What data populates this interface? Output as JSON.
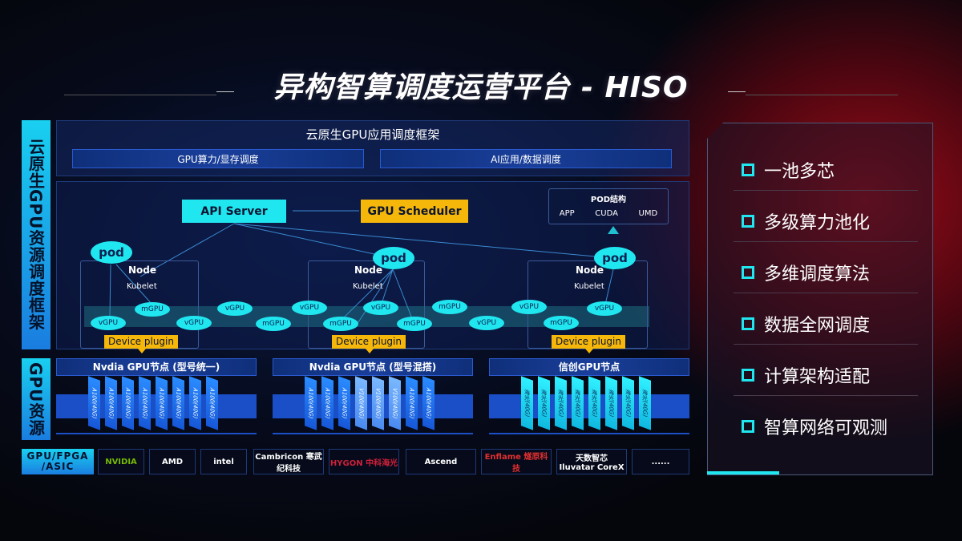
{
  "title": "异构智算调度运营平台 - HISO",
  "left_labels": {
    "top": "云原生GPU资源调度框架",
    "gpu": "GPU资源",
    "chips": "GPU/FPGA /ASIC"
  },
  "framework": {
    "title": "云原生GPU应用调度框架",
    "bar1": "GPU算力/显存调度",
    "bar2": "AI应用/数据调度"
  },
  "api_server": "API Server",
  "gpu_scheduler": "GPU Scheduler",
  "pod_struct": {
    "title": "POD结构",
    "items": [
      "APP",
      "CUDA",
      "UMD"
    ]
  },
  "pod": "pod",
  "node": "Node",
  "kubelet": "Kubelet",
  "device_plugin": "Device plugin",
  "gpu_tokens": [
    "vGPU",
    "mGPU",
    "vGPU",
    "vGPU",
    "mGPU",
    "vGPU",
    "mGPU",
    "vGPU",
    "mGPU",
    "mGPU",
    "vGPU",
    "vGPU",
    "mGPU",
    "vGPU",
    "vGPU"
  ],
  "gpu_nodes": [
    {
      "title": "Nvdia GPU节点 (型号统一)",
      "cards": [
        "A100(40G)",
        "A100(40G)",
        "A100(40G)",
        "A100(40G)",
        "A100(40G)",
        "A100(40G)",
        "A100(40G)",
        "A100(40G)"
      ]
    },
    {
      "title": "Nvdia GPU节点 (型号混搭)",
      "cards": [
        "A100(40G)",
        "A100(40G)",
        "A100(40G)",
        "V100(40G)",
        "V100(40G)",
        "V100(40G)",
        "A100(40G)",
        "A100(40G)"
      ]
    },
    {
      "title": "信创GPU节点",
      "cards": [
        "海光(40G)",
        "海光(40G)",
        "海光(40G)",
        "海光(40G)",
        "海光(40G)",
        "海光(40G)",
        "海光(40G)",
        "海光(40G)"
      ]
    }
  ],
  "vendors": [
    "NVIDIA",
    "AMD",
    "intel",
    "Cambricon 寒武纪科技",
    "HYGON 中科海光",
    "Ascend",
    "Enflame 燧原科技",
    "天数智芯 Iluvatar CoreX",
    "......"
  ],
  "features": [
    "一池多芯",
    "多级算力池化",
    "多维调度算法",
    "数据全网调度",
    "计算架构适配",
    "智算网络可观测"
  ],
  "colors": {
    "cyan": "#20e6f0",
    "orange": "#f5b70a",
    "blue": "#1657d8"
  }
}
